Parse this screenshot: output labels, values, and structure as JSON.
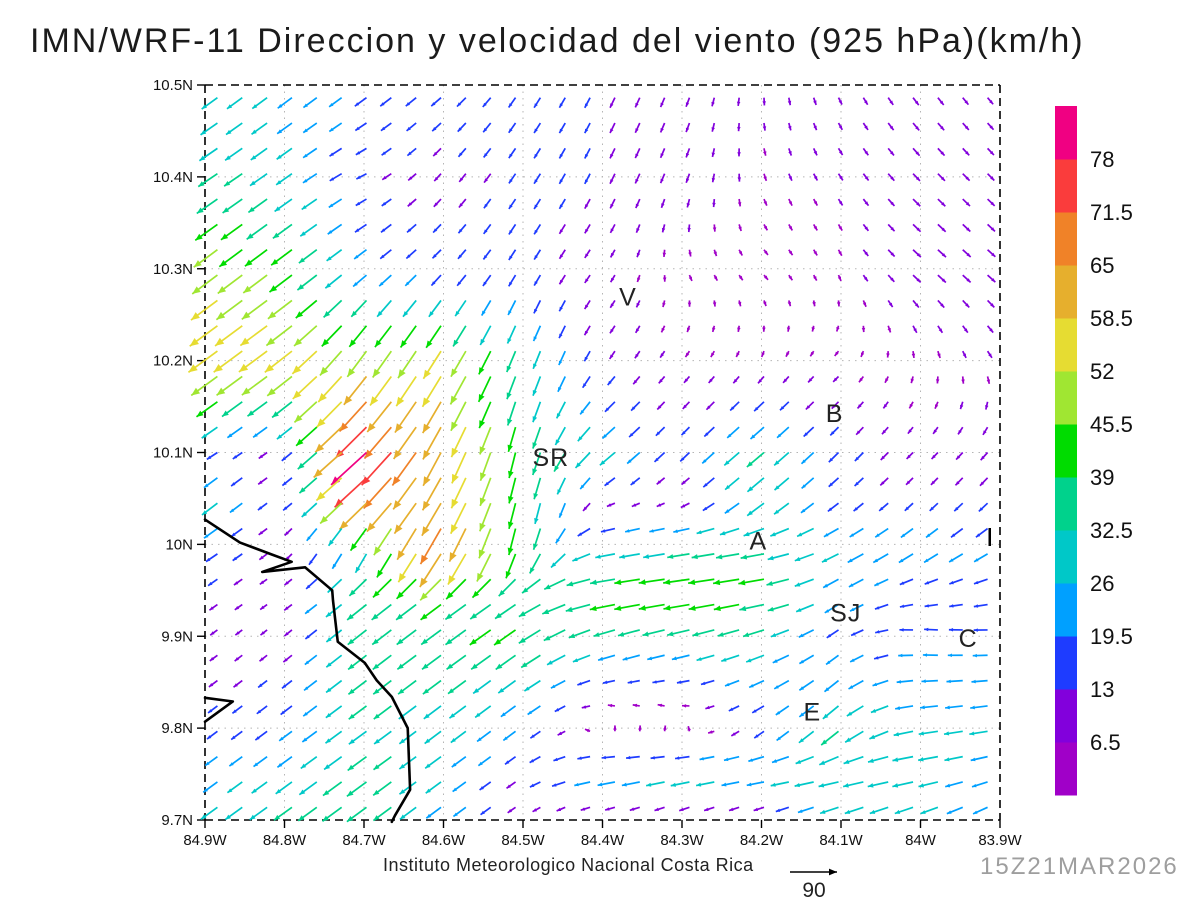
{
  "title": "IMN/WRF-11 Direccion y velocidad del viento (925 hPa)(km/h)",
  "credit": "Instituto Meteorologico Nacional Costa Rica",
  "timestamp": "15Z21MAR2026",
  "reference_vector": {
    "label": "90",
    "value": 90
  },
  "axes": {
    "lat_ticks": [
      {
        "label": "10.5N",
        "value": 10.5
      },
      {
        "label": "10.4N",
        "value": 10.4
      },
      {
        "label": "10.3N",
        "value": 10.3
      },
      {
        "label": "10.2N",
        "value": 10.2
      },
      {
        "label": "10.1N",
        "value": 10.1
      },
      {
        "label": "10N",
        "value": 10.0
      },
      {
        "label": "9.9N",
        "value": 9.9
      },
      {
        "label": "9.8N",
        "value": 9.8
      },
      {
        "label": "9.7N",
        "value": 9.7
      }
    ],
    "lon_ticks": [
      {
        "label": "84.9W",
        "value": 84.9
      },
      {
        "label": "84.8W",
        "value": 84.8
      },
      {
        "label": "84.7W",
        "value": 84.7
      },
      {
        "label": "84.6W",
        "value": 84.6
      },
      {
        "label": "84.5W",
        "value": 84.5
      },
      {
        "label": "84.4W",
        "value": 84.4
      },
      {
        "label": "84.3W",
        "value": 84.3
      },
      {
        "label": "84.2W",
        "value": 84.2
      },
      {
        "label": "84.1W",
        "value": 84.1
      },
      {
        "label": "84W",
        "value": 84.0
      },
      {
        "label": "83.9W",
        "value": 83.9
      }
    ]
  },
  "stations": [
    {
      "label": "V",
      "lon_w": 84.368,
      "lat_n": 10.27
    },
    {
      "label": "B",
      "lon_w": 84.108,
      "lat_n": 10.143
    },
    {
      "label": "SR",
      "lon_w": 84.465,
      "lat_n": 10.095
    },
    {
      "label": "A",
      "lon_w": 84.204,
      "lat_n": 10.004
    },
    {
      "label": "SJ",
      "lon_w": 84.094,
      "lat_n": 9.926
    },
    {
      "label": "C",
      "lon_w": 83.94,
      "lat_n": 9.898
    },
    {
      "label": "E",
      "lon_w": 84.136,
      "lat_n": 9.818
    }
  ],
  "map": {
    "coastline": [
      [
        84.9,
        10.027
      ],
      [
        84.856,
        10.002
      ],
      [
        84.816,
        9.989
      ],
      [
        84.791,
        9.981
      ],
      [
        84.828,
        9.97
      ],
      [
        84.774,
        9.975
      ],
      [
        84.74,
        9.95
      ],
      [
        84.739,
        9.939
      ],
      [
        84.733,
        9.894
      ],
      [
        84.699,
        9.871
      ],
      [
        84.684,
        9.852
      ],
      [
        84.665,
        9.834
      ],
      [
        84.645,
        9.8
      ],
      [
        84.642,
        9.733
      ],
      [
        84.661,
        9.705
      ],
      [
        84.665,
        9.698
      ]
    ],
    "spit": [
      [
        84.9,
        9.833
      ],
      [
        84.865,
        9.829
      ],
      [
        84.9,
        9.807
      ]
    ]
  },
  "chart_data": {
    "type": "quiver",
    "title": "IMN/WRF-11 Direccion y velocidad del viento (925 hPa)(km/h)",
    "units": "km/h",
    "level": "925 hPa",
    "lon_w_range": [
      84.9,
      83.9
    ],
    "lat_n_range": [
      9.7,
      10.5
    ],
    "grid_on": true,
    "legend_position": "right-colorbar",
    "speed_levels": [
      6.5,
      13,
      19.5,
      26,
      32.5,
      39,
      45.5,
      52,
      58.5,
      65,
      71.5,
      78
    ],
    "speed_colors": [
      "#A000C8",
      "#8200DC",
      "#1E3CFF",
      "#00A0FF",
      "#00C8C8",
      "#00D28C",
      "#00DC00",
      "#A0E632",
      "#E6DC32",
      "#E6AF2D",
      "#F08228",
      "#FA3C3C",
      "#F00082"
    ],
    "grid_lons_w": [
      84.9,
      84.8,
      84.7,
      84.6,
      84.5,
      84.4,
      84.3,
      84.2,
      84.1,
      84.0,
      83.9
    ],
    "grid_lats_n": [
      10.5,
      10.4,
      10.3,
      10.2,
      10.1,
      10.05,
      10.0,
      9.95,
      9.9,
      9.8,
      9.75,
      9.7
    ],
    "uv_kmh": [
      [
        [
          -22,
          -16
        ],
        [
          -20,
          -15
        ],
        [
          -16,
          -12
        ],
        [
          -13,
          -11
        ],
        [
          -8,
          -12
        ],
        [
          -6,
          -12
        ],
        [
          -4,
          -10
        ],
        [
          0,
          -7
        ],
        [
          3,
          -6
        ],
        [
          6,
          -8
        ],
        [
          5,
          -6
        ]
      ],
      [
        [
          -30,
          -20
        ],
        [
          -24,
          -17
        ],
        [
          -12,
          -6
        ],
        [
          -7,
          -8
        ],
        [
          -8,
          -12
        ],
        [
          -6,
          -12
        ],
        [
          -4,
          -10
        ],
        [
          2,
          -6
        ],
        [
          4,
          -6
        ],
        [
          8,
          -8
        ],
        [
          7,
          -7
        ]
      ],
      [
        [
          -40,
          -30
        ],
        [
          -36,
          -27
        ],
        [
          -18,
          -14
        ],
        [
          -11,
          -11
        ],
        [
          -8,
          -13
        ],
        [
          -5,
          -7
        ],
        [
          2,
          -4
        ],
        [
          3,
          -3
        ],
        [
          2,
          -4
        ],
        [
          10,
          -9
        ],
        [
          9,
          -8
        ]
      ],
      [
        [
          -48,
          -35
        ],
        [
          -46,
          -34
        ],
        [
          -32,
          -44
        ],
        [
          -30,
          -48
        ],
        [
          -12,
          -32
        ],
        [
          -6,
          -9
        ],
        [
          -4,
          -5
        ],
        [
          -2,
          -4
        ],
        [
          -3,
          -3
        ],
        [
          0,
          -5
        ],
        [
          4,
          -6
        ]
      ],
      [
        [
          -14,
          -9
        ],
        [
          -8,
          -6
        ],
        [
          -60,
          -54
        ],
        [
          -28,
          -54
        ],
        [
          -8,
          -38
        ],
        [
          -24,
          -20
        ],
        [
          -10,
          -10
        ],
        [
          -26,
          -22
        ],
        [
          -12,
          -12
        ],
        [
          -6,
          -6
        ],
        [
          -8,
          -9
        ]
      ],
      [
        [
          -26,
          -20
        ],
        [
          -7,
          -5
        ],
        [
          -48,
          -44
        ],
        [
          -30,
          -52
        ],
        [
          -8,
          -38
        ],
        [
          -6,
          -3
        ],
        [
          -5,
          -3
        ],
        [
          -24,
          -20
        ],
        [
          -12,
          -10
        ],
        [
          -8,
          -8
        ],
        [
          -10,
          -10
        ]
      ],
      [
        [
          -18,
          -12
        ],
        [
          -6,
          -5
        ],
        [
          -12,
          -28
        ],
        [
          -36,
          -63
        ],
        [
          -8,
          -40
        ],
        [
          -24,
          -5
        ],
        [
          -30,
          -5
        ],
        [
          -34,
          -6
        ],
        [
          -24,
          -12
        ],
        [
          -20,
          -14
        ],
        [
          -18,
          -12
        ]
      ],
      [
        [
          -10,
          -7
        ],
        [
          -6,
          -4
        ],
        [
          -30,
          -24
        ],
        [
          -32,
          -24
        ],
        [
          -30,
          -20
        ],
        [
          -42,
          -7
        ],
        [
          -44,
          -6
        ],
        [
          -42,
          -7
        ],
        [
          -20,
          -12
        ],
        [
          -16,
          -4
        ],
        [
          -18,
          -4
        ]
      ],
      [
        [
          -7,
          -5
        ],
        [
          -6,
          -5
        ],
        [
          -28,
          -22
        ],
        [
          -30,
          -22
        ],
        [
          -34,
          -24
        ],
        [
          -30,
          -10
        ],
        [
          -32,
          -8
        ],
        [
          -30,
          -10
        ],
        [
          -14,
          -10
        ],
        [
          -18,
          2
        ],
        [
          -18,
          0
        ]
      ],
      [
        [
          -12,
          -9
        ],
        [
          -16,
          -12
        ],
        [
          -26,
          -19
        ],
        [
          -24,
          -18
        ],
        [
          -16,
          -12
        ],
        [
          2,
          4
        ],
        [
          3,
          4
        ],
        [
          -10,
          -8
        ],
        [
          -26,
          -22
        ],
        [
          -28,
          -4
        ],
        [
          -26,
          -4
        ]
      ],
      [
        [
          -18,
          -13
        ],
        [
          -22,
          -16
        ],
        [
          -30,
          -22
        ],
        [
          -22,
          -16
        ],
        [
          -10,
          -7
        ],
        [
          -28,
          -5
        ],
        [
          -32,
          -6
        ],
        [
          -28,
          -5
        ],
        [
          -30,
          -6
        ],
        [
          -32,
          -6
        ],
        [
          -20,
          -6
        ]
      ],
      [
        [
          -26,
          -19
        ],
        [
          -28,
          -20
        ],
        [
          -30,
          -22
        ],
        [
          -20,
          -15
        ],
        [
          -6,
          -4
        ],
        [
          -4,
          -2
        ],
        [
          -4,
          -3
        ],
        [
          -5,
          -3
        ],
        [
          -26,
          -10
        ],
        [
          -24,
          -10
        ],
        [
          -18,
          -10
        ]
      ]
    ],
    "reference_vector_kmh": 90
  }
}
